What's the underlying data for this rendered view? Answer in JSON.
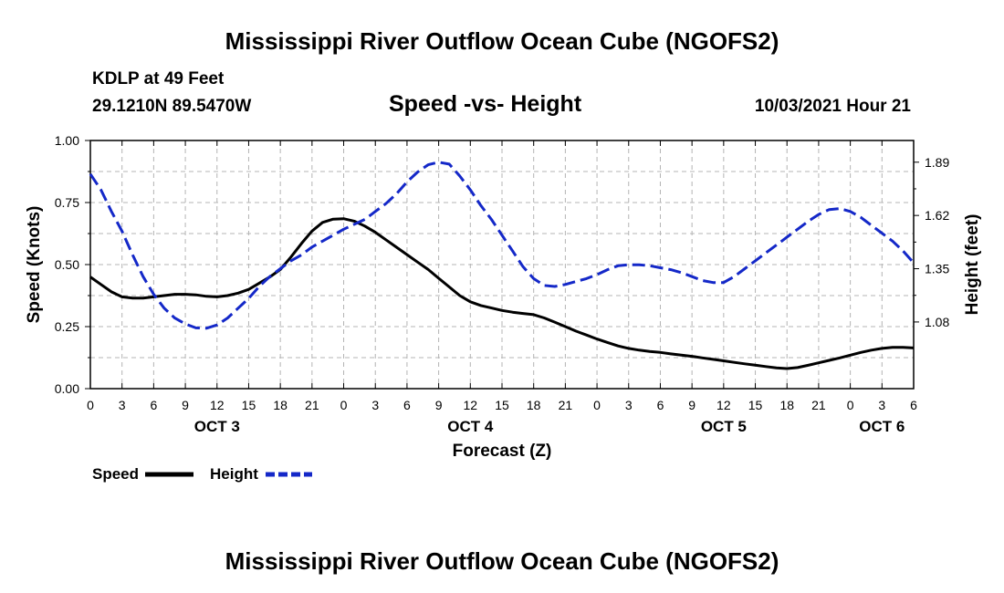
{
  "page": {
    "top_title": "Mississippi River Outflow Ocean Cube (NGOFS2)",
    "bottom_title": "Mississippi River Outflow Ocean Cube (NGOFS2)",
    "station_line": "KDLP at 49 Feet",
    "coords_line": "29.1210N  89.5470W",
    "chart_title": "Speed -vs- Height",
    "datetime": "10/03/2021 Hour 21"
  },
  "chart_data": {
    "type": "line",
    "title": "Speed -vs- Height",
    "xlabel": "Forecast (Z)",
    "ylabel": "Speed (Knots)",
    "y2label": "Height (feet)",
    "x_range_hours": [
      0,
      78
    ],
    "x_ticks": [
      {
        "h": 0,
        "label": "0"
      },
      {
        "h": 3,
        "label": "3"
      },
      {
        "h": 6,
        "label": "6"
      },
      {
        "h": 9,
        "label": "9"
      },
      {
        "h": 12,
        "label": "12"
      },
      {
        "h": 15,
        "label": "15"
      },
      {
        "h": 18,
        "label": "18"
      },
      {
        "h": 21,
        "label": "21"
      },
      {
        "h": 24,
        "label": "0"
      },
      {
        "h": 27,
        "label": "3"
      },
      {
        "h": 30,
        "label": "6"
      },
      {
        "h": 33,
        "label": "9"
      },
      {
        "h": 36,
        "label": "12"
      },
      {
        "h": 39,
        "label": "15"
      },
      {
        "h": 42,
        "label": "18"
      },
      {
        "h": 45,
        "label": "21"
      },
      {
        "h": 48,
        "label": "0"
      },
      {
        "h": 51,
        "label": "3"
      },
      {
        "h": 54,
        "label": "6"
      },
      {
        "h": 57,
        "label": "9"
      },
      {
        "h": 60,
        "label": "12"
      },
      {
        "h": 63,
        "label": "15"
      },
      {
        "h": 66,
        "label": "18"
      },
      {
        "h": 69,
        "label": "21"
      },
      {
        "h": 72,
        "label": "0"
      },
      {
        "h": 75,
        "label": "3"
      },
      {
        "h": 78,
        "label": "6"
      }
    ],
    "day_labels": [
      {
        "h": 12,
        "label": "OCT 3"
      },
      {
        "h": 36,
        "label": "OCT 4"
      },
      {
        "h": 60,
        "label": "OCT 5"
      },
      {
        "h": 75,
        "label": "OCT 6"
      }
    ],
    "y_left": {
      "range": [
        0,
        1
      ],
      "ticks": [
        0,
        0.25,
        0.5,
        0.75,
        1.0
      ],
      "tick_labels": [
        "0.00",
        "0.25",
        "0.50",
        "0.75",
        "1.00"
      ]
    },
    "y_right": {
      "range": [
        0.742,
        2.0
      ],
      "ticks": [
        1.08,
        1.35,
        1.62,
        1.89
      ],
      "tick_labels": [
        "1.08",
        "1.35",
        "1.62",
        "1.89"
      ]
    },
    "grid": true,
    "series": [
      {
        "name": "Speed",
        "axis": "left",
        "color": "#000000",
        "dash": "solid",
        "points": [
          [
            0,
            0.45
          ],
          [
            1,
            0.42
          ],
          [
            2,
            0.39
          ],
          [
            3,
            0.37
          ],
          [
            4,
            0.365
          ],
          [
            5,
            0.365
          ],
          [
            6,
            0.37
          ],
          [
            7,
            0.375
          ],
          [
            8,
            0.38
          ],
          [
            9,
            0.38
          ],
          [
            10,
            0.378
          ],
          [
            11,
            0.372
          ],
          [
            12,
            0.37
          ],
          [
            13,
            0.375
          ],
          [
            14,
            0.385
          ],
          [
            15,
            0.4
          ],
          [
            16,
            0.425
          ],
          [
            17,
            0.45
          ],
          [
            18,
            0.48
          ],
          [
            19,
            0.53
          ],
          [
            20,
            0.585
          ],
          [
            21,
            0.635
          ],
          [
            22,
            0.67
          ],
          [
            23,
            0.683
          ],
          [
            24,
            0.685
          ],
          [
            25,
            0.675
          ],
          [
            26,
            0.655
          ],
          [
            27,
            0.63
          ],
          [
            28,
            0.6
          ],
          [
            29,
            0.57
          ],
          [
            30,
            0.54
          ],
          [
            31,
            0.51
          ],
          [
            32,
            0.48
          ],
          [
            33,
            0.445
          ],
          [
            34,
            0.41
          ],
          [
            35,
            0.375
          ],
          [
            36,
            0.35
          ],
          [
            37,
            0.335
          ],
          [
            38,
            0.325
          ],
          [
            39,
            0.315
          ],
          [
            40,
            0.308
          ],
          [
            41,
            0.303
          ],
          [
            42,
            0.298
          ],
          [
            43,
            0.285
          ],
          [
            44,
            0.268
          ],
          [
            45,
            0.25
          ],
          [
            46,
            0.232
          ],
          [
            47,
            0.216
          ],
          [
            48,
            0.2
          ],
          [
            49,
            0.186
          ],
          [
            50,
            0.172
          ],
          [
            51,
            0.162
          ],
          [
            52,
            0.155
          ],
          [
            53,
            0.15
          ],
          [
            54,
            0.146
          ],
          [
            55,
            0.14
          ],
          [
            56,
            0.135
          ],
          [
            57,
            0.13
          ],
          [
            58,
            0.124
          ],
          [
            59,
            0.118
          ],
          [
            60,
            0.112
          ],
          [
            61,
            0.106
          ],
          [
            62,
            0.1
          ],
          [
            63,
            0.095
          ],
          [
            64,
            0.089
          ],
          [
            65,
            0.084
          ],
          [
            66,
            0.081
          ],
          [
            67,
            0.085
          ],
          [
            68,
            0.094
          ],
          [
            69,
            0.104
          ],
          [
            70,
            0.114
          ],
          [
            71,
            0.124
          ],
          [
            72,
            0.135
          ],
          [
            73,
            0.146
          ],
          [
            74,
            0.155
          ],
          [
            75,
            0.162
          ],
          [
            76,
            0.166
          ],
          [
            77,
            0.166
          ],
          [
            78,
            0.164
          ]
        ]
      },
      {
        "name": "Height",
        "axis": "right",
        "color": "#1428c8",
        "dash": "dashed",
        "points": [
          [
            0,
            1.83
          ],
          [
            1,
            1.75
          ],
          [
            2,
            1.64
          ],
          [
            3,
            1.54
          ],
          [
            4,
            1.42
          ],
          [
            5,
            1.31
          ],
          [
            6,
            1.22
          ],
          [
            7,
            1.15
          ],
          [
            8,
            1.1
          ],
          [
            9,
            1.07
          ],
          [
            10,
            1.05
          ],
          [
            11,
            1.048
          ],
          [
            12,
            1.065
          ],
          [
            13,
            1.1
          ],
          [
            14,
            1.15
          ],
          [
            15,
            1.2
          ],
          [
            16,
            1.26
          ],
          [
            17,
            1.31
          ],
          [
            18,
            1.35
          ],
          [
            19,
            1.39
          ],
          [
            20,
            1.42
          ],
          [
            21,
            1.46
          ],
          [
            22,
            1.49
          ],
          [
            23,
            1.52
          ],
          [
            24,
            1.55
          ],
          [
            25,
            1.575
          ],
          [
            26,
            1.6
          ],
          [
            27,
            1.64
          ],
          [
            28,
            1.68
          ],
          [
            29,
            1.73
          ],
          [
            30,
            1.79
          ],
          [
            31,
            1.84
          ],
          [
            32,
            1.877
          ],
          [
            33,
            1.89
          ],
          [
            34,
            1.88
          ],
          [
            35,
            1.82
          ],
          [
            36,
            1.75
          ],
          [
            37,
            1.67
          ],
          [
            38,
            1.6
          ],
          [
            39,
            1.52
          ],
          [
            40,
            1.44
          ],
          [
            41,
            1.36
          ],
          [
            42,
            1.3
          ],
          [
            43,
            1.265
          ],
          [
            44,
            1.26
          ],
          [
            45,
            1.27
          ],
          [
            46,
            1.285
          ],
          [
            47,
            1.3
          ],
          [
            48,
            1.32
          ],
          [
            49,
            1.345
          ],
          [
            50,
            1.365
          ],
          [
            51,
            1.37
          ],
          [
            52,
            1.37
          ],
          [
            53,
            1.365
          ],
          [
            54,
            1.355
          ],
          [
            55,
            1.345
          ],
          [
            56,
            1.33
          ],
          [
            57,
            1.31
          ],
          [
            58,
            1.29
          ],
          [
            59,
            1.28
          ],
          [
            60,
            1.28
          ],
          [
            61,
            1.31
          ],
          [
            62,
            1.35
          ],
          [
            63,
            1.39
          ],
          [
            64,
            1.43
          ],
          [
            65,
            1.47
          ],
          [
            66,
            1.51
          ],
          [
            67,
            1.55
          ],
          [
            68,
            1.59
          ],
          [
            69,
            1.625
          ],
          [
            70,
            1.65
          ],
          [
            71,
            1.655
          ],
          [
            72,
            1.64
          ],
          [
            73,
            1.61
          ],
          [
            74,
            1.57
          ],
          [
            75,
            1.53
          ],
          [
            76,
            1.49
          ],
          [
            77,
            1.44
          ],
          [
            78,
            1.38
          ]
        ]
      }
    ]
  }
}
